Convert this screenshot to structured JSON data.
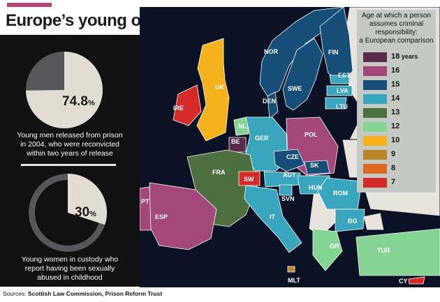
{
  "title": "Europe’s young offenders",
  "colors": {
    "18": "#5a2a4a",
    "16": "#a3487a",
    "15": "#154f78",
    "14": "#3aa6bd",
    "13": "#4d7040",
    "12": "#86d493",
    "10": "#f5b21c",
    "9": "#b7862a",
    "8": "#dd6a22",
    "7": "#d42a28",
    "unknown": "#cfcbc2",
    "land": "#e7e4dd",
    "sea": "#0b1226",
    "accent": "#b5487a"
  },
  "stats": [
    {
      "value": "74.8",
      "unit": "%",
      "fraction": 0.748,
      "caption": [
        "Young men released from prison",
        "in 2004, who were reconvicted",
        "within two years of release"
      ]
    },
    {
      "value": "30",
      "unit": "%",
      "fraction": 0.3,
      "caption": [
        "Young women in custody who",
        "report having been sexually",
        "abused in childhood"
      ]
    }
  ],
  "legend": {
    "title": [
      "Age at which a person",
      "assumes criminal",
      "responsibility:",
      "a European comparison"
    ],
    "items": [
      {
        "value": "18",
        "suffix": "years",
        "color_key": "18"
      },
      {
        "value": "16",
        "suffix": "",
        "color_key": "16"
      },
      {
        "value": "15",
        "suffix": "",
        "color_key": "15"
      },
      {
        "value": "14",
        "suffix": "",
        "color_key": "14"
      },
      {
        "value": "13",
        "suffix": "",
        "color_key": "13"
      },
      {
        "value": "12",
        "suffix": "",
        "color_key": "12"
      },
      {
        "value": "10",
        "suffix": "",
        "color_key": "10"
      },
      {
        "value": "9",
        "suffix": "",
        "color_key": "9"
      },
      {
        "value": "8",
        "suffix": "",
        "color_key": "8"
      },
      {
        "value": "7",
        "suffix": "",
        "color_key": "7"
      }
    ]
  },
  "countries": [
    {
      "label": "NOR",
      "age": 15
    },
    {
      "label": "FIN",
      "age": 15
    },
    {
      "label": "SWE",
      "age": 15
    },
    {
      "label": "DEN",
      "age": 15
    },
    {
      "label": "EST",
      "age": 14
    },
    {
      "label": "LVA",
      "age": 14
    },
    {
      "label": "LTU",
      "age": 14
    },
    {
      "label": "UK",
      "age": 10
    },
    {
      "label": "IRE",
      "age": 7
    },
    {
      "label": "NL",
      "age": 12
    },
    {
      "label": "BE",
      "age": 18
    },
    {
      "label": "GER",
      "age": 14
    },
    {
      "label": "POL",
      "age": 16
    },
    {
      "label": "CZE",
      "age": 15
    },
    {
      "label": "SK",
      "age": 15
    },
    {
      "label": "FRA",
      "age": 13
    },
    {
      "label": "SW",
      "age": 7
    },
    {
      "label": "AUT",
      "age": 14
    },
    {
      "label": "HUN",
      "age": 14
    },
    {
      "label": "SVN",
      "age": 14
    },
    {
      "label": "ROM",
      "age": 14
    },
    {
      "label": "PT",
      "age": 16
    },
    {
      "label": "ESP",
      "age": 16
    },
    {
      "label": "IT",
      "age": 14
    },
    {
      "label": "BG",
      "age": 14
    },
    {
      "label": "GR",
      "age": 12
    },
    {
      "label": "TUR",
      "age": 12
    },
    {
      "label": "MLT",
      "age": 9
    },
    {
      "label": "CY",
      "age": 7
    }
  ],
  "sources": {
    "label": "Sources:",
    "text": "Scottish Law Commission, Prison Reform Trust"
  }
}
